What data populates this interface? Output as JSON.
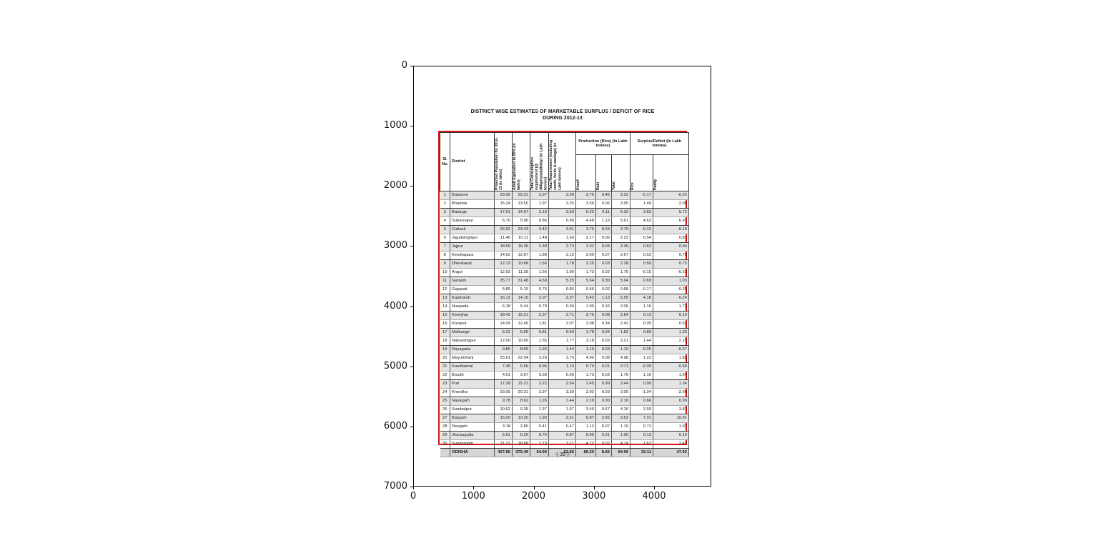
{
  "figure": {
    "x_ticks": [
      "0",
      "1000",
      "2000",
      "3000",
      "4000"
    ],
    "y_ticks": [
      "0",
      "1000",
      "2000",
      "3000",
      "4000",
      "5000",
      "6000",
      "7000"
    ]
  },
  "table": {
    "title_line1": "DISTRICT WISE ESTIMATES OF MARKETABLE SURPLUS / DEFICIT OF RICE",
    "title_line2": "DURING 2012-13",
    "footer_mark": "-( 35 )-",
    "border_color": "#d41414",
    "stripe_color": "#e4e4e4",
    "headers": {
      "sl_no": "Sl. No.",
      "district": "District",
      "projected_population": "Projected Population for 2012-13 (in lakhs)",
      "adult_equivalent": "Adult Equivalent to 85% (in lakhs)",
      "total_consumption": "Total Consumption requirement (@ 400gms/adult/day) (in Lakh tonnes)",
      "total_requirement": "Total Requirement (including seeds, feeds & wastage) (in Lakh tonnes)",
      "production_group": "Production (Rice) (In Lakh tonnes)",
      "production_sub": [
        "Kharif",
        "Rabi",
        "Total"
      ],
      "surplus_group": "Surplus/Deficit (In Lakh tonnes)",
      "surplus_sub": [
        "Rice",
        "Paddy"
      ]
    }
  },
  "chart_data": {
    "type": "table",
    "title": "DISTRICT WISE ESTIMATES OF MARKETABLE SURPLUS / DEFICIT OF RICE DURING 2012-13",
    "columns": [
      "Sl. No.",
      "District",
      "Projected Population for 2012-13 (in lakhs)",
      "Adult Equivalent to 85% (in lakhs)",
      "Total Consumption requirement (@ 400gms/adult/day) (in Lakh tonnes)",
      "Total Requirement (including seeds, feeds & wastage) (in Lakh tonnes)",
      "Production (Rice) Kharif (in Lakh tonnes)",
      "Production (Rice) Rabi (in Lakh tonnes)",
      "Production (Rice) Total (in Lakh tonnes)",
      "Surplus/Deficit Rice (in Lakh tonnes)",
      "Surplus/Deficit Paddy (in Lakh tonnes)"
    ],
    "rows": [
      [
        "1",
        "Balasore",
        "23.05",
        "20.31",
        "2.97",
        "3.39",
        "2.76",
        "0.46",
        "3.22",
        "-0.17",
        "-0.25"
      ],
      [
        "2",
        "Bhadrak",
        "15.34",
        "13.50",
        "1.97",
        "2.25",
        "3.59",
        "0.06",
        "3.65",
        "1.40",
        "2.09"
      ],
      [
        "3",
        "Balangir",
        "17.61",
        "14.97",
        "2.19",
        "2.50",
        "6.22",
        "0.11",
        "6.33",
        "3.83",
        "5.72"
      ],
      [
        "4",
        "Subarnapur",
        "6.70",
        "5.90",
        "0.86",
        "0.98",
        "4.48",
        "1.13",
        "5.61",
        "4.63",
        "6.91"
      ],
      [
        "5",
        "Cuttack",
        "26.62",
        "23.43",
        "3.42",
        "3.91",
        "3.75",
        "0.04",
        "3.79",
        "-0.12",
        "-0.18"
      ],
      [
        "6",
        "Jagatsinghpur",
        "11.46",
        "10.11",
        "1.48",
        "1.69",
        "2.17",
        "0.06",
        "2.23",
        "0.54",
        "0.81"
      ],
      [
        "7",
        "Jajpur",
        "18.59",
        "16.36",
        "2.39",
        "2.73",
        "3.32",
        "0.04",
        "3.36",
        "0.63",
        "0.94"
      ],
      [
        "8",
        "Kendrapara",
        "14.62",
        "12.87",
        "1.88",
        "2.15",
        "2.60",
        "0.07",
        "2.67",
        "0.52",
        "0.78"
      ],
      [
        "9",
        "Dhenkanal",
        "12.13",
        "10.68",
        "1.56",
        "1.78",
        "2.25",
        "0.03",
        "2.28",
        "0.50",
        "0.75"
      ],
      [
        "10",
        "Angul",
        "12.93",
        "11.35",
        "1.66",
        "1.90",
        "1.73",
        "0.02",
        "1.75",
        "-0.15",
        "-0.22"
      ],
      [
        "11",
        "Ganjam",
        "35.77",
        "31.48",
        "4.60",
        "5.25",
        "5.64",
        "0.30",
        "5.94",
        "0.69",
        "1.03"
      ],
      [
        "12",
        "Gajapati",
        "5.85",
        "5.15",
        "0.75",
        "0.85",
        "0.66",
        "0.02",
        "0.68",
        "-0.17",
        "-0.25"
      ],
      [
        "13",
        "Kalahandi",
        "16.12",
        "14.10",
        "2.07",
        "2.37",
        "5.42",
        "1.13",
        "6.55",
        "4.18",
        "6.24"
      ],
      [
        "14",
        "Nuapada",
        "6.18",
        "5.44",
        "0.79",
        "0.90",
        "1.90",
        "0.16",
        "2.06",
        "1.16",
        "1.73"
      ],
      [
        "15",
        "Keonjhar",
        "18.42",
        "16.21",
        "2.37",
        "2.71",
        "2.76",
        "0.08",
        "2.84",
        "0.13",
        "0.19"
      ],
      [
        "16",
        "Koraput",
        "14.09",
        "12.40",
        "1.81",
        "2.07",
        "2.08",
        "0.34",
        "2.42",
        "0.35",
        "0.52"
      ],
      [
        "17",
        "Malkangir",
        "6.31",
        "5.55",
        "0.81",
        "0.93",
        "1.78",
        "0.04",
        "1.82",
        "0.89",
        "1.33"
      ],
      [
        "18",
        "Nabarangpur",
        "12.00",
        "10.60",
        "1.55",
        "1.77",
        "3.18",
        "0.03",
        "3.21",
        "1.44",
        "2.15"
      ],
      [
        "19",
        "Rayagada",
        "9.85",
        "8.65",
        "1.26",
        "1.44",
        "1.16",
        "0.03",
        "1.19",
        "-0.25",
        "-0.37"
      ],
      [
        "20",
        "Mayurbhanj",
        "25.61",
        "22.54",
        "3.29",
        "3.76",
        "4.90",
        "0.08",
        "4.98",
        "1.22",
        "1.82"
      ],
      [
        "21",
        "Kandhamal",
        "7.45",
        "6.56",
        "0.96",
        "1.10",
        "0.70",
        "0.01",
        "0.71",
        "-0.39",
        "-0.58"
      ],
      [
        "22",
        "Boudh",
        "4.51",
        "3.97",
        "0.58",
        "0.66",
        "1.73",
        "0.03",
        "1.76",
        "1.10",
        "1.64"
      ],
      [
        "23",
        "Puri",
        "17.28",
        "15.21",
        "2.22",
        "2.54",
        "2.45",
        "0.99",
        "3.44",
        "0.90",
        "1.34"
      ],
      [
        "24",
        "Khordha",
        "23.05",
        "20.31",
        "2.97",
        "3.39",
        "2.02",
        "0.03",
        "2.05",
        "-1.34",
        "-2.00"
      ],
      [
        "25",
        "Nayagarh",
        "9.78",
        "8.62",
        "1.26",
        "1.44",
        "2.10",
        "0.00",
        "2.10",
        "0.66",
        "0.99"
      ],
      [
        "26",
        "Sambalpur",
        "10.62",
        "9.35",
        "1.37",
        "1.57",
        "3.49",
        "0.67",
        "4.16",
        "2.59",
        "3.87"
      ],
      [
        "27",
        "Bargarh",
        "15.00",
        "13.20",
        "1.93",
        "2.21",
        "6.87",
        "2.65",
        "9.52",
        "7.31",
        "10.91"
      ],
      [
        "28",
        "Deogarh",
        "3.18",
        "2.80",
        "0.41",
        "0.47",
        "1.12",
        "0.07",
        "1.19",
        "0.72",
        "1.07"
      ],
      [
        "29",
        "Jharsuguda",
        "5.91",
        "5.20",
        "0.76",
        "0.87",
        "0.99",
        "0.01",
        "1.00",
        "0.13",
        "0.19"
      ],
      [
        "30",
        "Sundargarh",
        "21.21",
        "18.68",
        "2.73",
        "3.11",
        "4.72",
        "0.02",
        "4.74",
        "1.63",
        "2.43"
      ]
    ],
    "total_row": [
      "",
      "ODISHA",
      "427.80",
      "375.49",
      "54.99",
      "62.85",
      "86.29",
      "8.66",
      "94.96",
      "32.11",
      "47.92"
    ]
  }
}
